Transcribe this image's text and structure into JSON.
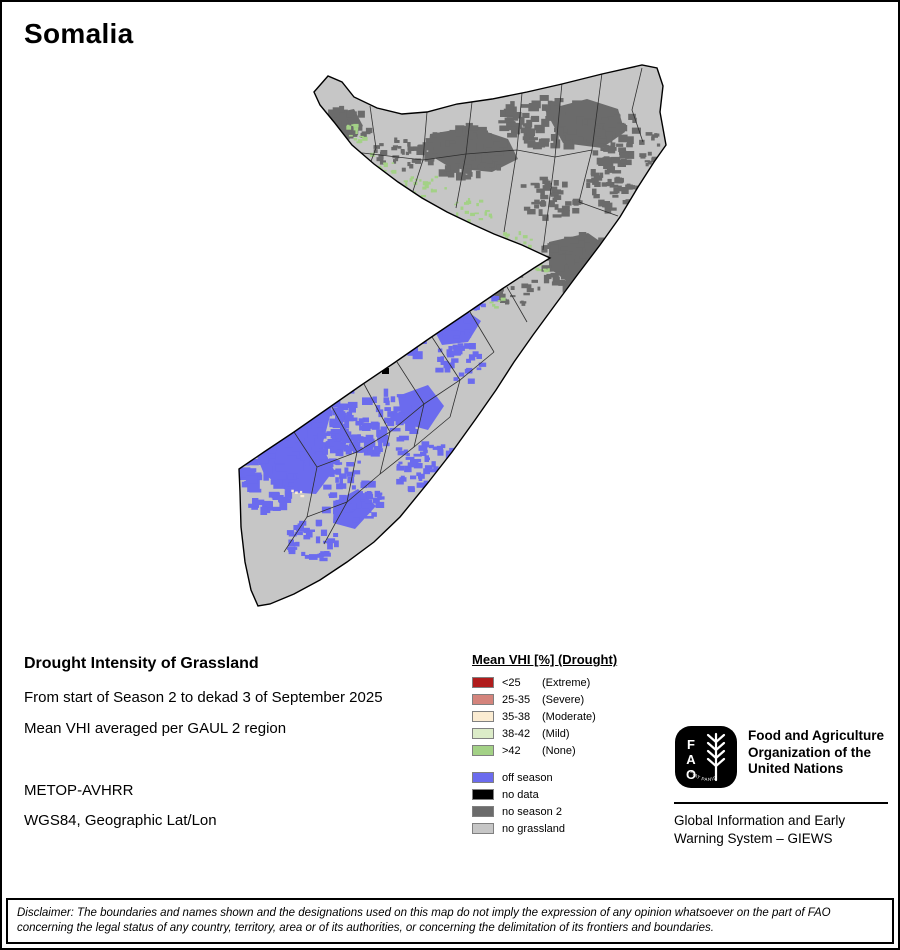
{
  "title": "Somalia",
  "info": {
    "heading": "Drought Intensity of Grassland",
    "line1": "From start of Season 2 to dekad 3 of September 2025",
    "line2": "Mean VHI averaged per GAUL 2 region",
    "sensor": "METOP-AVHRR",
    "projection": "WGS84, Geographic Lat/Lon"
  },
  "legend": {
    "title": "Mean VHI [%] (Drought)",
    "vhi": [
      {
        "value": "<25",
        "qualifier": "(Extreme)",
        "color": "#b01c1c"
      },
      {
        "value": "25-35",
        "qualifier": "(Severe)",
        "color": "#d4847c"
      },
      {
        "value": "35-38",
        "qualifier": "(Moderate)",
        "color": "#fbecd2"
      },
      {
        "value": "38-42",
        "qualifier": "(Mild)",
        "color": "#dcecc8"
      },
      {
        "value": ">42",
        "qualifier": "(None)",
        "color": "#a3d186"
      }
    ],
    "other": [
      {
        "label": "off season",
        "color": "#6b6bee"
      },
      {
        "label": "no data",
        "color": "#000000"
      },
      {
        "label": "no season 2",
        "color": "#6b6b6b"
      },
      {
        "label": "no grassland",
        "color": "#c6c6c6"
      }
    ]
  },
  "footer": {
    "fao_letters": [
      "F",
      "A",
      "O"
    ],
    "fao_motto": "FIAT PANIS",
    "fao_name_lines": [
      "Food and Agriculture",
      "Organization of the",
      "United Nations"
    ],
    "giews_lines": [
      "Global Information and Early",
      "Warning System – GIEWS"
    ]
  },
  "disclaimer_lines": [
    "Disclaimer: The boundaries and names shown and the designations used on this map do not imply the expression of any opinion whatsoever on the part of FAO",
    "concerning the legal status of any country, territory, area or of its authorities, or concerning the delimitation of its frontiers and boundaries."
  ],
  "map": {
    "region": "Somalia",
    "colors": {
      "extreme": "#b01c1c",
      "severe": "#d4847c",
      "moderate": "#fbecd2",
      "mild": "#dcecc8",
      "none": "#a3d186",
      "offseason": "#6b6bee",
      "nodata": "#000000",
      "noseason2": "#6b6b6b",
      "nograssland": "#c6c6c6"
    }
  }
}
